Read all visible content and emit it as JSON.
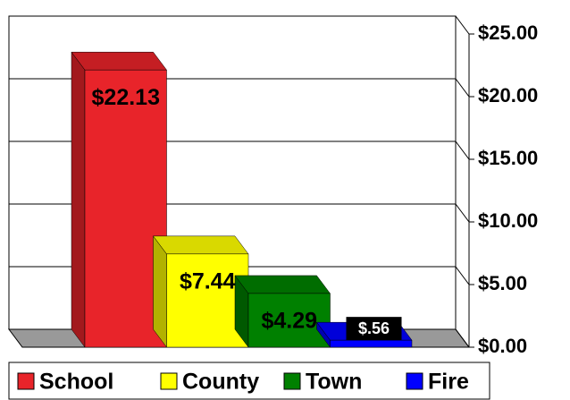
{
  "chart_data": {
    "type": "bar",
    "categories": [
      "School",
      "County",
      "Town",
      "Fire"
    ],
    "values": [
      22.13,
      7.44,
      4.29,
      0.56
    ],
    "value_labels": [
      "$22.13",
      "$7.44",
      "$4.29",
      "$.56"
    ],
    "colors": [
      "#e8242a",
      "#ffff00",
      "#008000",
      "#0000ff"
    ],
    "ylim": [
      0,
      25
    ],
    "yticks": [
      {
        "value": 0,
        "label": "$0.00"
      },
      {
        "value": 5,
        "label": "$5.00"
      },
      {
        "value": 10,
        "label": "$10.00"
      },
      {
        "value": 15,
        "label": "$15.00"
      },
      {
        "value": 20,
        "label": "$20.00"
      },
      {
        "value": 25,
        "label": "$25.00"
      }
    ],
    "grid": true,
    "legend": "bottom"
  }
}
